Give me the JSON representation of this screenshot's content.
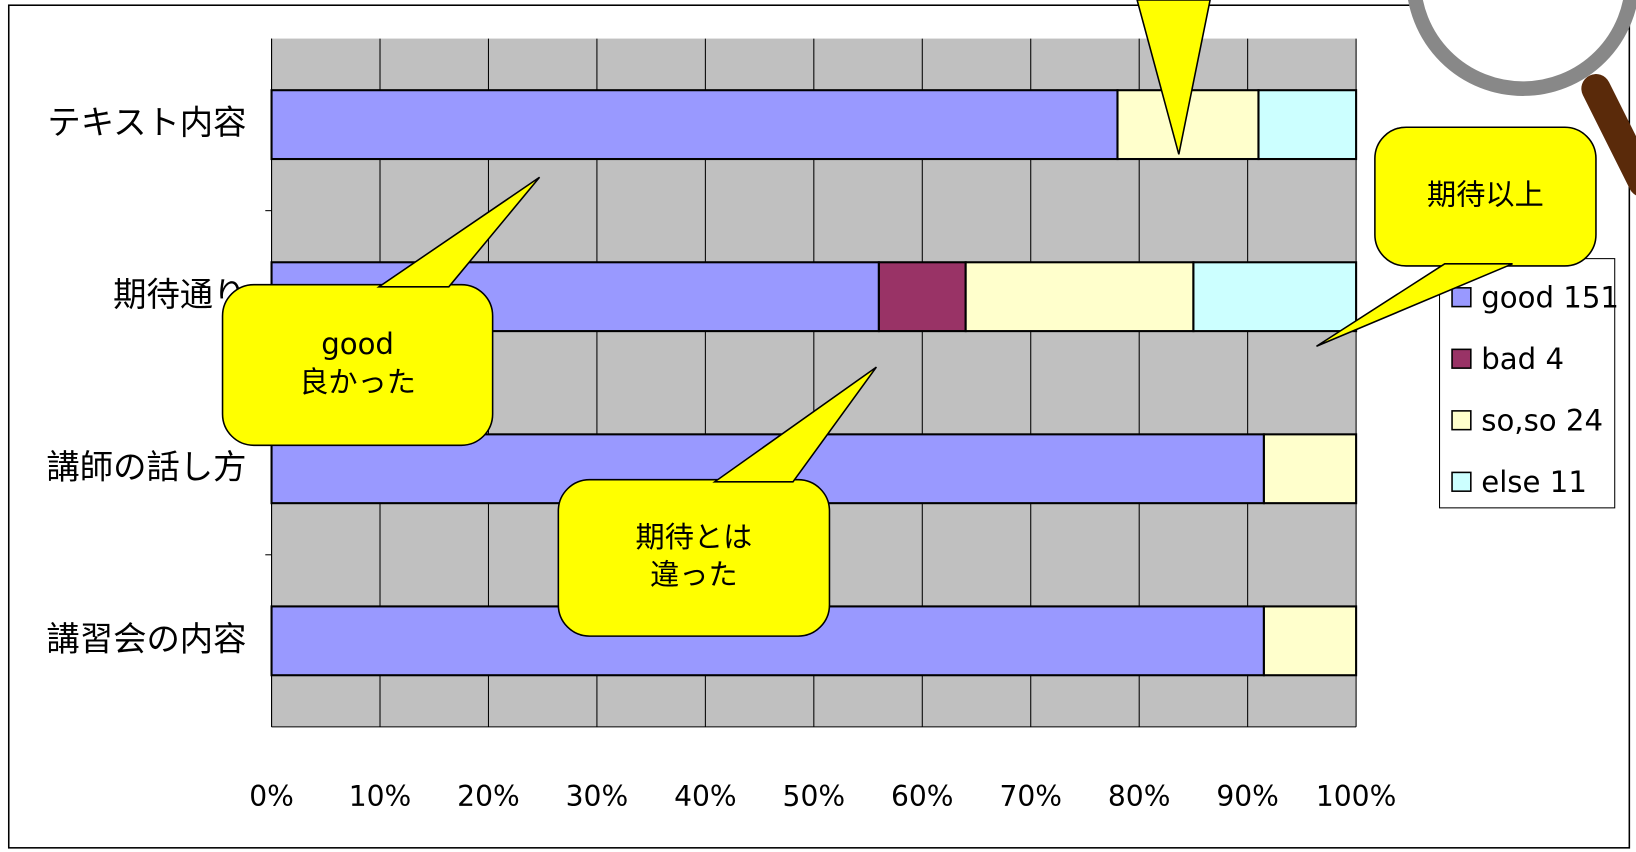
{
  "chart_data": {
    "type": "stacked-bar-horizontal",
    "categories": [
      "テキスト内容",
      "期待通り",
      "講師の話し方",
      "講習会の内容"
    ],
    "series": [
      {
        "name": "good 151",
        "color": "#9999ff",
        "values": [
          78,
          56,
          91.5,
          91.5
        ]
      },
      {
        "name": "bad   4",
        "color": "#993366",
        "values": [
          0,
          8,
          0,
          0
        ]
      },
      {
        "name": "so,so 24",
        "color": "#ffffcc",
        "values": [
          13,
          21,
          8.5,
          8.5
        ]
      },
      {
        "name": "else  11",
        "color": "#ccffff",
        "values": [
          9,
          15,
          0,
          0
        ]
      }
    ],
    "xlim": [
      0,
      100
    ],
    "xticks": [
      {
        "value": 0,
        "label": "0%"
      },
      {
        "value": 10,
        "label": "10%"
      },
      {
        "value": 20,
        "label": "20%"
      },
      {
        "value": 30,
        "label": "30%"
      },
      {
        "value": 40,
        "label": "40%"
      },
      {
        "value": 50,
        "label": "50%"
      },
      {
        "value": 60,
        "label": "60%"
      },
      {
        "value": 70,
        "label": "70%"
      },
      {
        "value": 80,
        "label": "80%"
      },
      {
        "value": 90,
        "label": "90%"
      },
      {
        "value": 100,
        "label": "100%"
      }
    ],
    "grid": true,
    "legend": "right",
    "annotations": [
      {
        "lines": [
          "good",
          "良かった"
        ]
      },
      {
        "lines": [
          "期待とは",
          "違った"
        ]
      },
      {
        "lines": [
          "期待以上"
        ]
      }
    ]
  }
}
